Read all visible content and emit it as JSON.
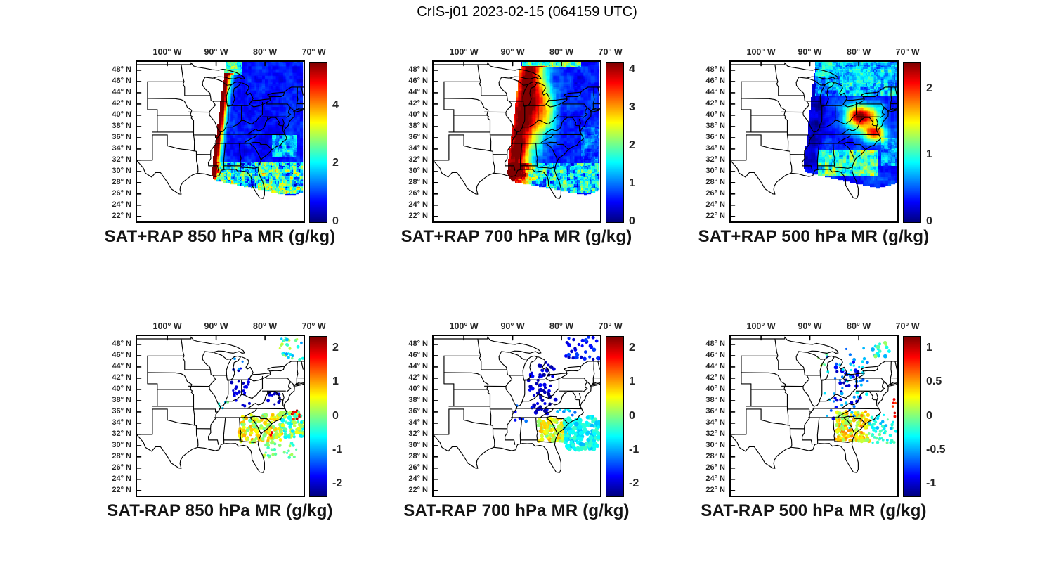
{
  "title": "CrIS-j01 2023-02-15 (064159 UTC)",
  "chart_data": {
    "type": "heatmap",
    "description": "Six-panel map figure over the central/eastern United States. Top row: CrIS-j01 satellite + RAP blended mixing ratio (g/kg) at 850, 700 and 500 hPa shown as a continuous jet-colored swath over the eastern US and western Atlantic. Bottom row: SAT minus RAP mixing ratio differences (g/kg) at the same levels shown as colored dot retrievals (dark blue negative clusters over the Appalachians/Northeast, green-yellow positive field over the Southeast).",
    "map_extent": {
      "lon": [
        -106.2,
        -72.1
      ],
      "lat": [
        21.1,
        49.5
      ]
    },
    "grid": false,
    "lon_ticks": [
      {
        "value": -100,
        "label": "100° W"
      },
      {
        "value": -90,
        "label": "90° W"
      },
      {
        "value": -80,
        "label": "80° W"
      },
      {
        "value": -70,
        "label": "70° W"
      }
    ],
    "lat_ticks": [
      {
        "value": 48,
        "label": "48° N"
      },
      {
        "value": 46,
        "label": "46° N"
      },
      {
        "value": 44,
        "label": "44° N"
      },
      {
        "value": 42,
        "label": "42° N"
      },
      {
        "value": 40,
        "label": "40° N"
      },
      {
        "value": 38,
        "label": "38° N"
      },
      {
        "value": 36,
        "label": "36° N"
      },
      {
        "value": 34,
        "label": "34° N"
      },
      {
        "value": 32,
        "label": "32° N"
      },
      {
        "value": 30,
        "label": "30° N"
      },
      {
        "value": 28,
        "label": "28° N"
      },
      {
        "value": 26,
        "label": "26° N"
      },
      {
        "value": 24,
        "label": "24° N"
      },
      {
        "value": 22,
        "label": "22° N"
      }
    ],
    "panels": [
      {
        "id": "sat-plus-rap-850",
        "title": "SAT+RAP 850 hPa MR (g/kg)",
        "colorbar": {
          "min": 0,
          "max": 5.5,
          "ticks": [
            {
              "value": 0,
              "label": "0"
            },
            {
              "value": 2,
              "label": "2"
            },
            {
              "value": 4,
              "label": "4"
            }
          ]
        },
        "render": {
          "kind": "field",
          "seed": 11,
          "base": 0.14,
          "noise": 0.09,
          "swath": [
            [
              -88.0,
              49.7
            ],
            [
              -71.8,
              49.7
            ],
            [
              -71.8,
              26.5
            ],
            [
              -74.5,
              25.6
            ],
            [
              -90.3,
              28.4
            ],
            [
              -91.0,
              29.4
            ]
          ],
          "features": [
            {
              "kind": "band",
              "a": [
                -87.6,
                49.7
              ],
              "b": [
                -90.7,
                29.4
              ],
              "w": 0.85,
              "v": 0.92,
              "latmax": 47.6
            },
            {
              "kind": "zone",
              "region": [
                -88.4,
                -84.5,
                47.3,
                49.7
              ],
              "base": 0.4,
              "noise": 0.3,
              "freq": 2.4
            },
            {
              "kind": "zone",
              "region": [
                -91.0,
                -71.8,
                26.0,
                31.8
              ],
              "base": 0.4,
              "noise": 0.42,
              "freq": 2.6
            },
            {
              "kind": "zone",
              "region": [
                -78.5,
                -73.5,
                32.5,
                36.5
              ],
              "base": 0.3,
              "noise": 0.22,
              "freq": 2.0
            }
          ]
        }
      },
      {
        "id": "sat-plus-rap-700",
        "title": "SAT+RAP 700 hPa MR (g/kg)",
        "colorbar": {
          "min": 0,
          "max": 4.2,
          "ticks": [
            {
              "value": 0,
              "label": "0"
            },
            {
              "value": 1,
              "label": "1"
            },
            {
              "value": 2,
              "label": "2"
            },
            {
              "value": 3,
              "label": "3"
            },
            {
              "value": 4,
              "label": "4"
            }
          ]
        },
        "render": {
          "kind": "field",
          "seed": 22,
          "base": 0.15,
          "noise": 0.1,
          "swath": [
            [
              -88.3,
              49.7
            ],
            [
              -71.8,
              49.7
            ],
            [
              -71.8,
              26.8
            ],
            [
              -75.0,
              25.8
            ],
            [
              -90.0,
              28.2
            ],
            [
              -91.2,
              29.6
            ]
          ],
          "features": [
            {
              "kind": "band",
              "a": [
                -86.3,
                49.7
              ],
              "b": [
                -89.9,
                29.6
              ],
              "w": 2.4,
              "v": 0.88,
              "latmax": 48.7
            },
            {
              "kind": "blob",
              "c": [
                -83.8,
                40.5
              ],
              "r": [
                2.2,
                4.5
              ],
              "v": 0.5
            },
            {
              "kind": "zone",
              "region": [
                -88.0,
                -76.0,
                48.6,
                49.7
              ],
              "base": 0.45,
              "noise": 0.28,
              "freq": 2.6
            },
            {
              "kind": "zone",
              "region": [
                -91.2,
                -71.8,
                26.2,
                31.5
              ],
              "base": 0.34,
              "noise": 0.34,
              "freq": 2.4
            },
            {
              "kind": "zone",
              "region": [
                -76.0,
                -71.8,
                31.5,
                38.0
              ],
              "base": 0.22,
              "noise": 0.18,
              "freq": 1.8
            }
          ]
        }
      },
      {
        "id": "sat-plus-rap-500",
        "title": "SAT+RAP 500 hPa MR (g/kg)",
        "colorbar": {
          "min": 0,
          "max": 2.4,
          "ticks": [
            {
              "value": 0,
              "label": "0"
            },
            {
              "value": 1,
              "label": "1"
            },
            {
              "value": 2,
              "label": "2"
            }
          ]
        },
        "render": {
          "kind": "field",
          "seed": 33,
          "base": 0.16,
          "noise": 0.1,
          "swath": [
            [
              -88.8,
              49.7
            ],
            [
              -71.8,
              49.7
            ],
            [
              -71.8,
              28.0
            ],
            [
              -76.0,
              27.0
            ],
            [
              -90.6,
              29.8
            ],
            [
              -91.3,
              30.6
            ]
          ],
          "features": [
            {
              "kind": "zone",
              "region": [
                -89.0,
                -71.8,
                43.5,
                49.7
              ],
              "base": 0.33,
              "noise": 0.24,
              "freq": 2.0
            },
            {
              "kind": "band",
              "a": [
                -87.6,
                45.0
              ],
              "b": [
                -89.9,
                31.5
              ],
              "w": 1.6,
              "v": -0.1
            },
            {
              "kind": "blob",
              "c": [
                -79.3,
                39.8
              ],
              "r": [
                2.6,
                2.0
              ],
              "v": 0.85
            },
            {
              "kind": "blob",
              "c": [
                -76.8,
                36.8
              ],
              "r": [
                1.9,
                1.4
              ],
              "v": 0.7
            },
            {
              "kind": "zone",
              "region": [
                -88.5,
                -76.0,
                29.3,
                33.8
              ],
              "base": 0.45,
              "noise": 0.3,
              "freq": 2.2
            },
            {
              "kind": "zone",
              "region": [
                -75.5,
                -71.8,
                31.0,
                36.0
              ],
              "base": 0.28,
              "noise": 0.2,
              "freq": 2.0
            }
          ]
        }
      },
      {
        "id": "sat-minus-rap-850",
        "title": "SAT-RAP 850 hPa MR (g/kg)",
        "colorbar": {
          "min": -2.35,
          "max": 2.35,
          "ticks": [
            {
              "value": 2,
              "label": "2"
            },
            {
              "value": 1,
              "label": "1"
            },
            {
              "value": 0,
              "label": "0"
            },
            {
              "value": -1,
              "label": "-1"
            },
            {
              "value": -2,
              "label": "-2"
            }
          ]
        },
        "render": {
          "k极ind": "dots-unused",
          "kind": "dots",
          "seed": 44,
          "groups": [
            {
              "region": [
                -87.0,
                -83.0,
                37.0,
                43.5
              ],
              "n": 26,
              "v": [
                0.03,
                0.13
              ],
              "r": [
                3,
                5
              ]
            },
            {
              "region": [
                -79.8,
                -77.0,
                37.0,
                39.5
              ],
              "n": 12,
              "v": [
                0.02,
                0.1
              ],
              "r": [
                3,
                5
              ]
            },
            {
              "region": [
                -77.5,
                -72.2,
                45.3,
                49.3
              ],
              "n": 30,
              "v": [
                0.25,
                0.6
              ],
              "r": [
                3,
                5
              ]
            },
            {
              "region": [
                -85.3,
                -76.5,
                30.5,
                35.6
              ],
              "n": 170,
              "v": [
                0.45,
                0.72
              ],
              "r": [
                4,
                6
              ]
            },
            {
              "region": [
                -77.0,
                -72.2,
                31.5,
                36.0
              ],
              "n": 90,
              "v": [
                0.35,
                0.62
              ],
              "r": [
                4,
                6
              ]
            },
            {
              "region": [
                -75.5,
                -72.4,
                33.8,
                36.3
              ],
              "n": 10,
              "v": [
                0.82,
                0.97
              ],
              "r": [
                3,
                4
              ]
            },
            {
              "region": [
                -80.5,
                -73.5,
                27.8,
                30.5
              ],
              "n": 26,
              "v": [
                0.38,
                0.6
              ],
              "r": [
                3,
                5
              ]
            },
            {
              "region": [
                -86.5,
                -84.5,
                43.5,
                45.5
              ],
              "n": 5,
              "v": [
                0.1,
                0.3
              ],
              "r": [
                3,
                4
              ]
            },
            {
              "region": [
                -79.2,
                -78.4,
                31.8,
                32.4
              ],
              "n": 3,
              "v": [
                0.85,
                0.95
              ],
              "r": [
                3,
                4
              ]
            },
            {
              "region": [
                -89.5,
                -86.5,
                35.5,
                38.5
              ],
              "n": 5,
              "v": [
                0.3,
                0.5
              ],
              "r": [
                3,
                4
              ]
            }
          ]
        }
      },
      {
        "id": "sat-minus-rap-700",
        "title": "SAT-RAP 700 hPa MR (g/kg)",
        "colorbar": {
          "min": -2.35,
          "max": 2.35,
          "ticks": [
            {
              "value": 2,
              "label": "2"
            },
            {
              "value": 1,
              "label": "1"
            },
            {
              "value": 0,
              "label": "0"
            },
            {
              "value": -1,
              "label": "-1"
            },
            {
              "value": -2,
              "label": "-2"
            }
          ]
        },
        "render": {
          "kind": "dots",
          "seed": 55,
          "groups": [
            {
              "region": [
                -86.8,
                -81.2,
                35.5,
                44.8
              ],
              "n": 60,
              "v": [
                0.02,
                0.15
              ],
              "r": [
                4,
                6
              ]
            },
            {
              "region": [
                -79.5,
                -72.3,
                45.2,
                49.4
              ],
              "n": 34,
              "v": [
                0.04,
                0.2
              ],
              "r": [
                4,
                6
              ]
            },
            {
              "region": [
                -84.8,
                -79.0,
                30.8,
                34.8
              ],
              "n": 130,
              "v": [
                0.48,
                0.7
              ],
              "r": [
                4,
                6
              ]
            },
            {
              "region": [
                -79.5,
                -72.3,
                29.3,
                35.2
              ],
              "n": 160,
              "v": [
                0.3,
                0.44
              ],
              "r": [
                5,
                7
              ]
            },
            {
              "region": [
                -89.5,
                -86.5,
                33.5,
                37.5
              ],
              "n": 6,
              "v": [
                0.1,
                0.25
              ],
              "r": [
                3,
                5
              ]
            },
            {
              "region": [
                -81.0,
                -77.0,
                35.0,
                38.0
              ],
              "n": 8,
              "v": [
                0.2,
                0.4
              ],
              "r": [
                3,
                5
              ]
            }
          ]
        }
      },
      {
        "id": "sat-minus-rap-500",
        "title": "SAT-RAP 500 hPa MR (g/kg)",
        "colorbar": {
          "min": -1.18,
          "max": 1.18,
          "ticks": [
            {
              "value": 1,
              "label": "1"
            },
            {
              "value": 0.5,
              "label": "0.5"
            },
            {
              "value": 0,
              "label": "0"
            },
            {
              "value": -0.5,
              "label": "-0.5"
            },
            {
              "value": -1,
              "label": "-1"
            }
          ]
        },
        "render": {
          "kind": "dots",
          "seed": 66,
          "groups": [
            {
              "region": [
                -85.5,
                -79.5,
                34.5,
                45.5
              ],
              "n": 30,
              "v": [
                0.03,
                0.15
              ],
              "r": [
                4,
                6
              ]
            },
            {
              "region": [
                -87.0,
                -78.0,
                33.0,
                47.5
              ],
              "n": 55,
              "v": [
                0.2,
                0.4
              ],
              "r": [
                3,
                5
              ]
            },
            {
              "region": [
                -77.5,
                -73.0,
                45.8,
                48.8
              ],
              "n": 16,
              "v": [
                0.3,
                0.55
              ],
              "r": [
                4,
                6
              ]
            },
            {
              "region": [
                -84.8,
                -77.8,
                30.8,
                36.2
              ],
              "n": 150,
              "v": [
                0.5,
                0.75
              ],
              "r": [
                4,
                6
              ]
            },
            {
              "region": [
                -78.0,
                -72.3,
                30.5,
                35.5
              ],
              "n": 55,
              "v": [
                0.3,
                0.5
              ],
              "r": [
                3,
                5
              ]
            },
            {
              "region": [
                -73.3,
                -72.3,
                35.0,
                38.5
              ],
              "n": 6,
              "v": [
                0.8,
                0.95
              ],
              "r": [
                3,
                4
              ]
            },
            {
              "region": [
                -88.5,
                -86.0,
                44.0,
                46.5
              ],
              "n": 5,
              "v": [
                0.45,
                0.6
              ],
              "r": [
                3,
                4
              ]
            }
          ]
        }
      }
    ]
  }
}
